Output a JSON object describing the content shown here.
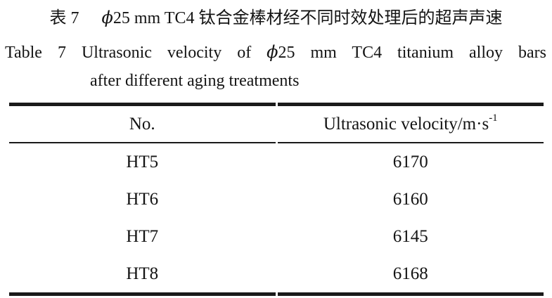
{
  "caption_zh": {
    "label": "表 7",
    "phi": "ϕ",
    "text": "25 mm TC4 钛合金棒材经不同时效处理后的超声声速"
  },
  "caption_en": {
    "label": "Table 7",
    "part1": "Ultrasonic velocity of",
    "phi": "ϕ",
    "part2": "25 mm TC4 titanium alloy bars",
    "line2": "after different aging treatments"
  },
  "table": {
    "headers": {
      "no": "No.",
      "velocity_base": "Ultrasonic velocity/m·s",
      "velocity_sup": "-1"
    },
    "rows": [
      {
        "no": "HT5",
        "velocity": "6170"
      },
      {
        "no": "HT6",
        "velocity": "6160"
      },
      {
        "no": "HT7",
        "velocity": "6145"
      },
      {
        "no": "HT8",
        "velocity": "6168"
      }
    ]
  }
}
